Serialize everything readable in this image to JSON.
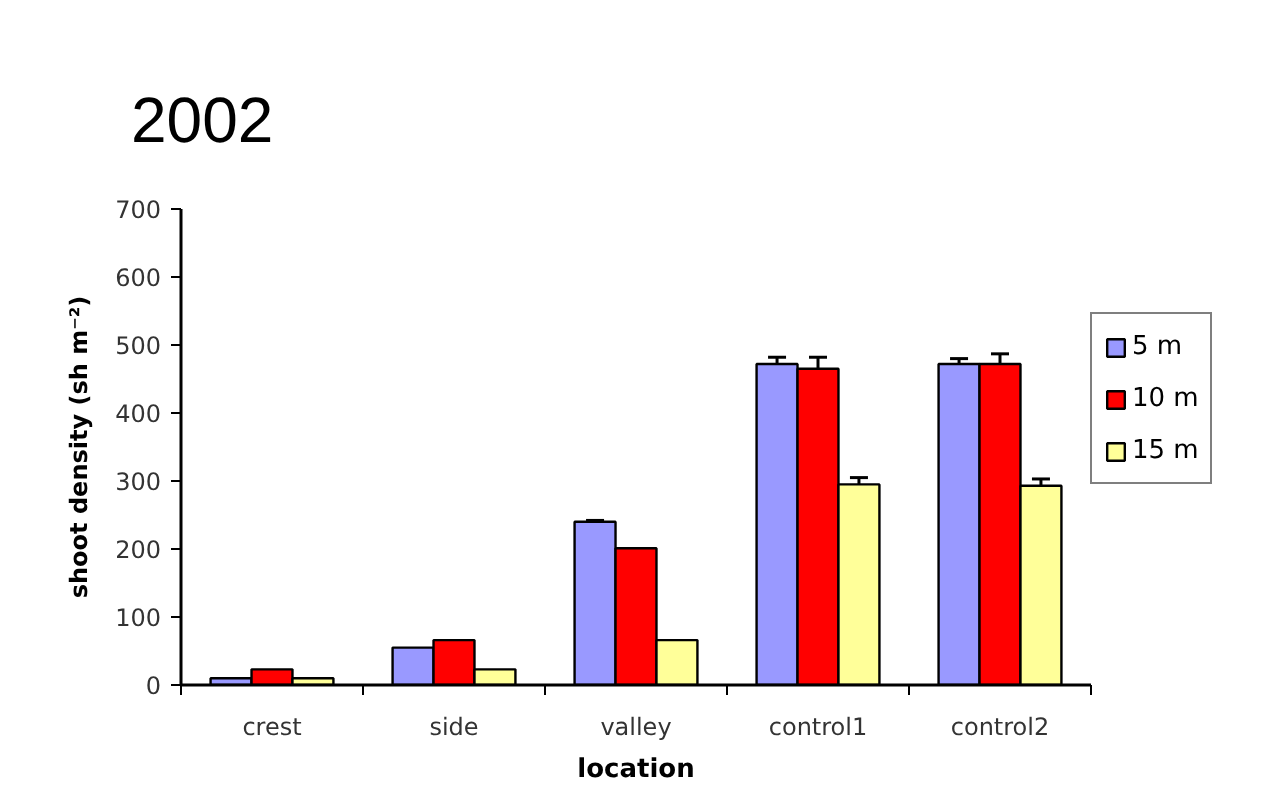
{
  "chart_data": {
    "type": "bar",
    "title": "2002",
    "xlabel": "location",
    "ylabel": "shoot density (sh m⁻²)",
    "categories": [
      "crest",
      "side",
      "valley",
      "control1",
      "control2"
    ],
    "series": [
      {
        "name": "5 m",
        "color": "#9999ff",
        "values": [
          10,
          55,
          240,
          472,
          472
        ],
        "errors": [
          null,
          null,
          2,
          10,
          8
        ]
      },
      {
        "name": "10 m",
        "color": "#ff0000",
        "values": [
          23,
          66,
          201,
          465,
          472
        ],
        "errors": [
          null,
          null,
          null,
          17,
          15
        ]
      },
      {
        "name": "15 m",
        "color": "#ffff99",
        "values": [
          10,
          23,
          66,
          295,
          293
        ],
        "errors": [
          null,
          null,
          null,
          10,
          10
        ]
      }
    ],
    "ylim": [
      0,
      700
    ],
    "yticks": [
      0,
      100,
      200,
      300,
      400,
      500,
      600,
      700
    ],
    "legend": "right"
  }
}
